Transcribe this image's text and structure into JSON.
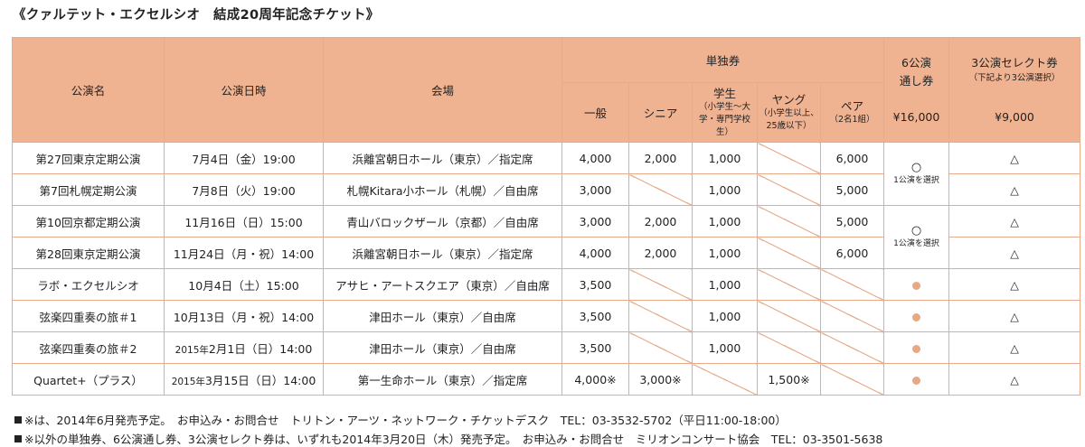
{
  "title": "《クァルテット・エクセルシオ　結成20周年記念チケット》",
  "headers": {
    "name": "公演名",
    "datetime": "公演日時",
    "venue": "会場",
    "single": "単独券",
    "general": "一般",
    "senior": "シニア",
    "student": "学生",
    "student_note": "（小学生～大学・専門学校生）",
    "young": "ヤング",
    "young_note": "（小学生以上、25歳以下）",
    "pair": "ペア",
    "pair_note": "（2名1組）",
    "six_l1": "6公演",
    "six_l2": "通し券",
    "six_price": "¥16,000",
    "three_l1": "3公演セレクト券",
    "three_note": "（下記より3公演選択）",
    "three_price": "¥9,000"
  },
  "rows": [
    {
      "name": "第27回東京定期公演",
      "datetime": "7月4日（金）19:00",
      "venue": "浜離宮朝日ホール（東京）／指定席",
      "general": "4,000",
      "senior": "2,000",
      "student": "1,000",
      "young": "",
      "pair": "6,000",
      "select": "△"
    },
    {
      "name": "第7回札幌定期公演",
      "datetime": "7月8日（火）19:00",
      "venue": "札幌Kitara小ホール（札幌）／自由席",
      "general": "3,000",
      "senior": "",
      "student": "1,000",
      "young": "",
      "pair": "5,000",
      "select": "△"
    },
    {
      "name": "第10回京都定期公演",
      "datetime": "11月16日（日）15:00",
      "venue": "青山バロックザール（京都）／自由席",
      "general": "3,000",
      "senior": "2,000",
      "student": "1,000",
      "young": "",
      "pair": "5,000",
      "select": "△"
    },
    {
      "name": "第28回東京定期公演",
      "datetime": "11月24日（月・祝）14:00",
      "venue": "浜離宮朝日ホール（東京）／指定席",
      "general": "4,000",
      "senior": "2,000",
      "student": "1,000",
      "young": "",
      "pair": "6,000",
      "select": "△"
    },
    {
      "name": "ラボ・エクセルシオ",
      "datetime": "10月4日（土）15:00",
      "venue": "アサヒ・アートスクエア（東京）／自由席",
      "general": "3,500",
      "senior": "",
      "student": "1,000",
      "young": "",
      "pair": "",
      "select": "△"
    },
    {
      "name": "弦楽四重奏の旅＃1",
      "datetime": "10月13日（月・祝）14:00",
      "venue": "津田ホール（東京）／自由席",
      "general": "3,500",
      "senior": "",
      "student": "1,000",
      "young": "",
      "pair": "",
      "select": "△"
    },
    {
      "name": "弦楽四重奏の旅＃2",
      "datetime_year": "2015年",
      "datetime": "2月1日（日）14:00",
      "venue": "津田ホール（東京）／自由席",
      "general": "3,500",
      "senior": "",
      "student": "1,000",
      "young": "",
      "pair": "",
      "select": "△"
    },
    {
      "name": "Quartet+（プラス）",
      "datetime_year": "2015年",
      "datetime": "3月15日（日）14:00",
      "venue": "第一生命ホール（東京）／指定席",
      "general": "4,000※",
      "senior": "3,000※",
      "student": "",
      "young": "1,500※",
      "pair": "",
      "select": "△"
    }
  ],
  "six_pass": {
    "symbol": "○",
    "note": "1公演を選択"
  },
  "colors": {
    "header_bg": "#f0b392",
    "border": "#e5ab8a",
    "dot": "#e8a882"
  },
  "notes": [
    "※は、2014年6月発売予定。　お申込み・お問合せ　トリトン・アーツ・ネットワーク・チケットデスク　TEL：03-3532-5702（平日11:00-18:00）",
    "※以外の単独券、6公演通し券、3公演セレクト券は、いずれも2014年3月20日（木）発売予定。　お申込み・お問合せ　ミリオンコンサート協会　TEL：03-3501-5638"
  ]
}
